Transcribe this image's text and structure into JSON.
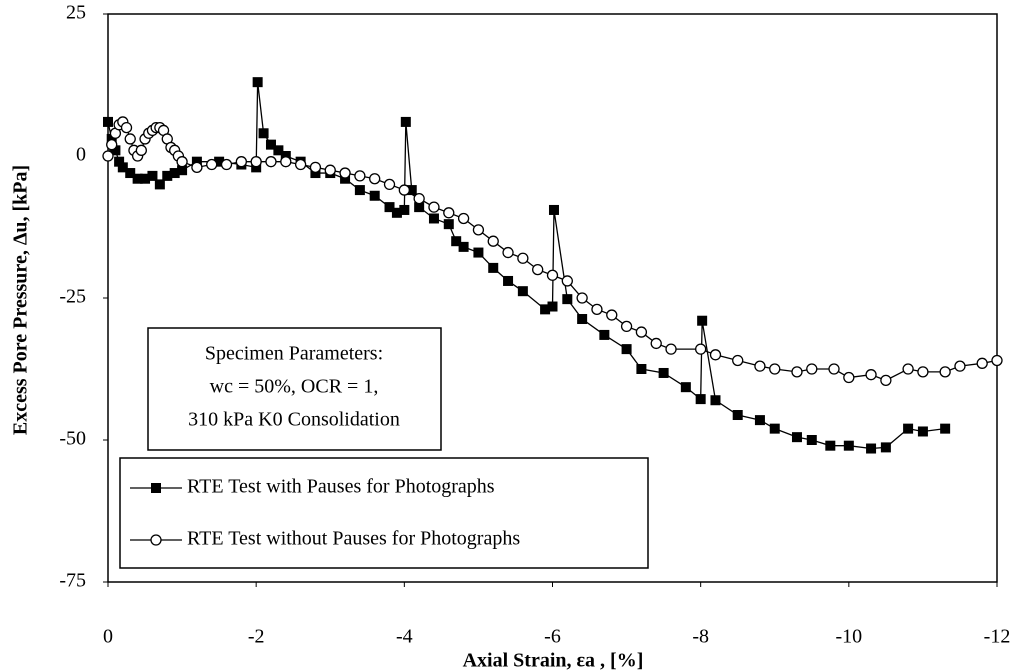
{
  "chart_data": {
    "type": "line",
    "x_label": "Axial Strain, εa , [%]",
    "y_label": "Excess Pore Pressure, Δu, [kPa]",
    "annotation": [
      "Specimen Parameters:",
      "wc = 50%, OCR = 1,",
      "310 kPa K0 Consolidation"
    ],
    "xlim": [
      0,
      -12
    ],
    "xticks": [
      0,
      -2,
      -4,
      -6,
      -8,
      -10,
      -12
    ],
    "ylim": [
      -75,
      25
    ],
    "yticks": [
      25,
      0,
      -25,
      -50,
      -75
    ],
    "grid": false,
    "legend": "lower left",
    "series": [
      {
        "name": "RTE Test with Pauses for Photographs",
        "color": "#000000",
        "marker": "square",
        "x": [
          0,
          -0.05,
          -0.1,
          -0.15,
          -0.2,
          -0.3,
          -0.4,
          -0.5,
          -0.6,
          -0.7,
          -0.8,
          -0.9,
          -1,
          -1.2,
          -1.5,
          -1.8,
          -2,
          -2.02,
          -2.1,
          -2.2,
          -2.3,
          -2.4,
          -2.6,
          -2.8,
          -3,
          -3.2,
          -3.4,
          -3.6,
          -3.8,
          -3.9,
          -4,
          -4.02,
          -4.1,
          -4.2,
          -4.4,
          -4.6,
          -4.7,
          -4.8,
          -5,
          -5.2,
          -5.4,
          -5.6,
          -5.9,
          -6,
          -6.02,
          -6.2,
          -6.4,
          -6.7,
          -7,
          -7.2,
          -7.5,
          -7.8,
          -8,
          -8.02,
          -8.2,
          -8.5,
          -8.8,
          -9,
          -9.3,
          -9.5,
          -9.75,
          -10,
          -10.3,
          -10.5,
          -10.8,
          -11,
          -11.3
        ],
        "values": [
          6,
          3,
          1,
          -1,
          -2,
          -3,
          -4,
          -4,
          -3.5,
          -5,
          -3.5,
          -3,
          -2.5,
          -1,
          -1,
          -1.5,
          -2,
          13,
          4,
          2,
          1,
          0,
          -1,
          -3,
          -3,
          -4,
          -6,
          -7,
          -9,
          -10,
          -9.5,
          6,
          -6,
          -9,
          -11,
          -12,
          -15,
          -16,
          -17,
          -19.7,
          -22,
          -23.8,
          -27,
          -26.5,
          -9.5,
          -25.2,
          -28.7,
          -31.5,
          -34,
          -37.5,
          -38.2,
          -40.7,
          -42.8,
          -29,
          -43,
          -45.6,
          -46.5,
          -48,
          -49.5,
          -50,
          -51,
          -51,
          -51.5,
          -51.3,
          -48,
          -48.5,
          -48
        ]
      },
      {
        "name": "RTE Test without Pauses for Photographs",
        "color": "#000000",
        "marker": "circle",
        "x": [
          0,
          -0.05,
          -0.1,
          -0.15,
          -0.2,
          -0.25,
          -0.3,
          -0.35,
          -0.4,
          -0.45,
          -0.5,
          -0.55,
          -0.6,
          -0.65,
          -0.7,
          -0.75,
          -0.8,
          -0.85,
          -0.9,
          -0.95,
          -1,
          -1.2,
          -1.4,
          -1.6,
          -1.8,
          -2,
          -2.2,
          -2.4,
          -2.6,
          -2.8,
          -3,
          -3.2,
          -3.4,
          -3.6,
          -3.8,
          -4,
          -4.2,
          -4.4,
          -4.6,
          -4.8,
          -5,
          -5.2,
          -5.4,
          -5.6,
          -5.8,
          -6,
          -6.2,
          -6.4,
          -6.6,
          -6.8,
          -7,
          -7.2,
          -7.4,
          -7.6,
          -8,
          -8.2,
          -8.5,
          -8.8,
          -9,
          -9.3,
          -9.5,
          -9.8,
          -10,
          -10.3,
          -10.5,
          -10.8,
          -11,
          -11.3,
          -11.5,
          -11.8,
          -12
        ],
        "values": [
          0,
          2,
          4,
          5.5,
          6,
          5,
          3,
          1,
          0,
          1,
          3,
          4,
          4.5,
          5,
          5,
          4.5,
          3,
          1.5,
          1,
          0,
          -1,
          -2,
          -1.5,
          -1.5,
          -1,
          -1,
          -1,
          -1,
          -1.5,
          -2,
          -2.5,
          -3,
          -3.5,
          -4,
          -5,
          -6,
          -7.5,
          -9,
          -10,
          -11,
          -13,
          -15,
          -17,
          -18,
          -20,
          -21,
          -22,
          -25,
          -27,
          -28,
          -30,
          -31,
          -33,
          -34,
          -34,
          -35,
          -36,
          -37,
          -37.5,
          -38,
          -37.5,
          -37.5,
          -39,
          -38.5,
          -39.5,
          -37.5,
          -38,
          -38,
          -37,
          -36.5,
          -36
        ]
      }
    ]
  }
}
